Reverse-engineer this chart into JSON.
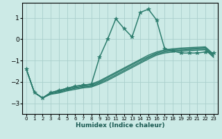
{
  "xlabel": "Humidex (Indice chaleur)",
  "bg_color": "#cceae6",
  "grid_color": "#aacfcc",
  "line_color": "#2d7d6e",
  "xlim": [
    -0.5,
    23.5
  ],
  "ylim": [
    -3.5,
    1.7
  ],
  "xticks": [
    0,
    1,
    2,
    3,
    4,
    5,
    6,
    7,
    8,
    9,
    10,
    11,
    12,
    13,
    14,
    15,
    16,
    17,
    18,
    19,
    20,
    21,
    22,
    23
  ],
  "yticks": [
    -3,
    -2,
    -1,
    0,
    1
  ],
  "lines": [
    {
      "x": [
        0,
        1,
        2,
        3,
        4,
        5,
        6,
        7,
        8,
        9,
        10,
        11,
        12,
        13,
        14,
        15,
        16,
        17,
        18,
        19,
        20,
        21,
        22,
        23
      ],
      "y": [
        -1.4,
        -2.5,
        -2.75,
        -2.5,
        -2.4,
        -2.3,
        -2.2,
        -2.15,
        -2.1,
        -0.85,
        -0.0,
        0.95,
        0.5,
        0.1,
        1.25,
        1.4,
        0.9,
        -0.45,
        -0.55,
        -0.65,
        -0.65,
        -0.65,
        -0.6,
        -0.65
      ],
      "marker": "*",
      "markersize": 4.0,
      "lw": 1.1
    },
    {
      "x": [
        0,
        1,
        2,
        3,
        4,
        5,
        6,
        7,
        8,
        9,
        10,
        11,
        12,
        13,
        14,
        15,
        16,
        17,
        18,
        19,
        20,
        21,
        22,
        23
      ],
      "y": [
        -1.4,
        -2.5,
        -2.75,
        -2.5,
        -2.4,
        -2.3,
        -2.2,
        -2.15,
        -2.1,
        -1.95,
        -1.75,
        -1.55,
        -1.35,
        -1.15,
        -0.95,
        -0.75,
        -0.6,
        -0.5,
        -0.45,
        -0.42,
        -0.4,
        -0.38,
        -0.36,
        -0.7
      ],
      "marker": null,
      "markersize": 0,
      "lw": 1.0
    },
    {
      "x": [
        0,
        1,
        2,
        3,
        4,
        5,
        6,
        7,
        8,
        9,
        10,
        11,
        12,
        13,
        14,
        15,
        16,
        17,
        18,
        19,
        20,
        21,
        22,
        23
      ],
      "y": [
        -1.4,
        -2.5,
        -2.75,
        -2.52,
        -2.44,
        -2.34,
        -2.26,
        -2.2,
        -2.15,
        -2.0,
        -1.8,
        -1.6,
        -1.4,
        -1.2,
        -1.0,
        -0.82,
        -0.65,
        -0.55,
        -0.5,
        -0.47,
        -0.44,
        -0.42,
        -0.4,
        -0.75
      ],
      "marker": null,
      "markersize": 0,
      "lw": 1.0
    },
    {
      "x": [
        0,
        1,
        2,
        3,
        4,
        5,
        6,
        7,
        8,
        9,
        10,
        11,
        12,
        13,
        14,
        15,
        16,
        17,
        18,
        19,
        20,
        21,
        22,
        23
      ],
      "y": [
        -1.4,
        -2.5,
        -2.75,
        -2.56,
        -2.48,
        -2.38,
        -2.3,
        -2.24,
        -2.2,
        -2.05,
        -1.87,
        -1.67,
        -1.47,
        -1.27,
        -1.07,
        -0.87,
        -0.7,
        -0.6,
        -0.55,
        -0.52,
        -0.49,
        -0.47,
        -0.45,
        -0.8
      ],
      "marker": null,
      "markersize": 0,
      "lw": 1.0
    },
    {
      "x": [
        0,
        1,
        2,
        3,
        4,
        5,
        6,
        7,
        8,
        9,
        10,
        11,
        12,
        13,
        14,
        15,
        16,
        17,
        18,
        19,
        20,
        21,
        22,
        23
      ],
      "y": [
        -1.4,
        -2.5,
        -2.75,
        -2.58,
        -2.52,
        -2.42,
        -2.35,
        -2.28,
        -2.24,
        -2.1,
        -1.93,
        -1.73,
        -1.53,
        -1.33,
        -1.13,
        -0.93,
        -0.75,
        -0.65,
        -0.6,
        -0.57,
        -0.54,
        -0.52,
        -0.5,
        -0.85
      ],
      "marker": null,
      "markersize": 0,
      "lw": 1.0
    }
  ]
}
